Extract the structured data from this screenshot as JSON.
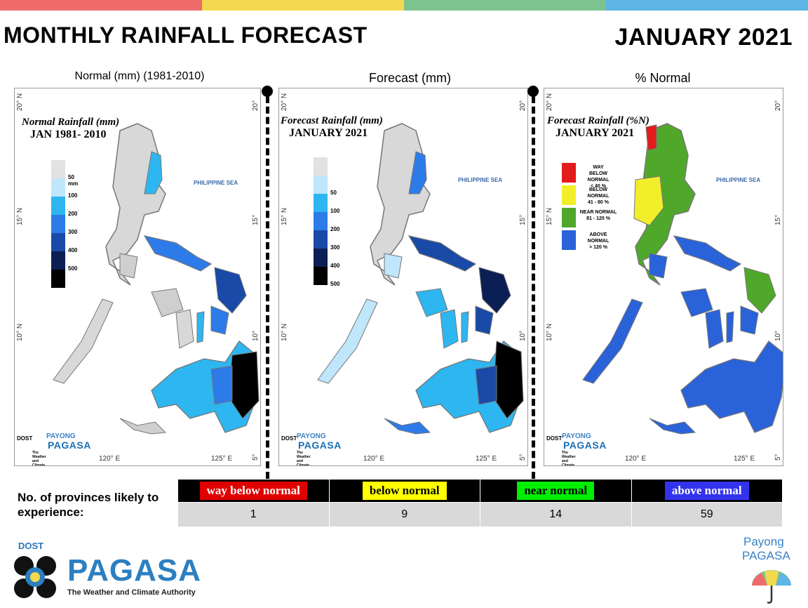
{
  "header": {
    "title": "MONTHLY RAINFALL FORECAST",
    "period": "JANUARY 2021",
    "top_bar_colors": [
      "#ef6b6b",
      "#f4d94f",
      "#7cc38f",
      "#5db5e6"
    ]
  },
  "panels": [
    {
      "caption": "Normal (mm) (1981-2010)",
      "map_title_1": "Normal Rainfall (mm)",
      "map_title_2": "JAN 1981- 2010",
      "legend": [
        {
          "label": "50 mm",
          "color": "#e2e2e2"
        },
        {
          "label": "100",
          "color": "#bfe6fb"
        },
        {
          "label": "200",
          "color": "#2eb6f0"
        },
        {
          "label": "300",
          "color": "#2d7be8"
        },
        {
          "label": "400",
          "color": "#1a4aa8"
        },
        {
          "label": "500",
          "color": "#0b1f55"
        },
        {
          "label": "",
          "color": "#000000"
        }
      ]
    },
    {
      "caption": "Forecast (mm)",
      "map_title_1": "Forecast Rainfall (mm)",
      "map_title_2": "JANUARY 2021",
      "legend": [
        {
          "label": "",
          "color": "#e2e2e2"
        },
        {
          "label": "50",
          "color": "#bfe6fb"
        },
        {
          "label": "100",
          "color": "#2eb6f0"
        },
        {
          "label": "200",
          "color": "#2d7be8"
        },
        {
          "label": "300",
          "color": "#1a4aa8"
        },
        {
          "label": "400",
          "color": "#0b1f55"
        },
        {
          "label": "500",
          "color": "#000000"
        }
      ]
    },
    {
      "caption": "% Normal",
      "map_title_1": "Forecast Rainfall (%N)",
      "map_title_2": "JANUARY 2021",
      "legend": [
        {
          "l1": "WAY",
          "l2": "BELOW NORMAL",
          "l3": "< 40 %",
          "color": "#e31b1b"
        },
        {
          "l1": "BELOW NORMAL",
          "l2": "41 - 80 %",
          "l3": "",
          "color": "#f2ee2a"
        },
        {
          "l1": "NEAR NORMAL",
          "l2": "81 - 120 %",
          "l3": "",
          "color": "#4fa82a"
        },
        {
          "l1": "ABOVE NORMAL",
          "l2": "> 120 %",
          "l3": "",
          "color": "#2a62d9"
        }
      ]
    }
  ],
  "map_labels": {
    "sea": "PHILIPPINE SEA",
    "lat_20": "20° N",
    "lat_15": "15° N",
    "lat_10": "10° N",
    "lat_5": "5° N",
    "lon_120": "120° E",
    "lon_125": "125° E"
  },
  "mini_logo": {
    "dost": "DOST",
    "payong": "PAYONG",
    "pagasa": "PAGASA",
    "tagline": "The Weather and Climate Authority"
  },
  "provinces": {
    "label": "No. of provinces likely to experience:",
    "categories": [
      {
        "label": "way below normal",
        "count": "1",
        "bg": "#e00000",
        "fg": "#ffffff"
      },
      {
        "label": "below normal",
        "count": "9",
        "bg": "#ffff00",
        "fg": "#000000"
      },
      {
        "label": "near normal",
        "count": "14",
        "bg": "#00ee00",
        "fg": "#000000"
      },
      {
        "label": "above normal",
        "count": "59",
        "bg": "#3333ee",
        "fg": "#ffffff"
      }
    ]
  },
  "footer": {
    "dost": "DOST",
    "pagasa": "PAGASA",
    "tagline": "The Weather and Climate Authority",
    "payong_1": "Payong",
    "payong_2": "PAGASA"
  }
}
